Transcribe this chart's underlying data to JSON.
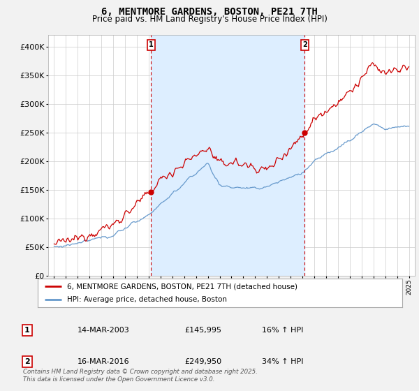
{
  "title": "6, MENTMORE GARDENS, BOSTON, PE21 7TH",
  "subtitle": "Price paid vs. HM Land Registry's House Price Index (HPI)",
  "red_label": "6, MENTMORE GARDENS, BOSTON, PE21 7TH (detached house)",
  "blue_label": "HPI: Average price, detached house, Boston",
  "annotation1": {
    "label": "1",
    "date": "14-MAR-2003",
    "price": "£145,995",
    "hpi": "16% ↑ HPI",
    "year": 2003.2,
    "value": 145995
  },
  "annotation2": {
    "label": "2",
    "date": "16-MAR-2016",
    "price": "£249,950",
    "hpi": "34% ↑ HPI",
    "year": 2016.2,
    "value": 249950
  },
  "footer": "Contains HM Land Registry data © Crown copyright and database right 2025.\nThis data is licensed under the Open Government Licence v3.0.",
  "background_color": "#f2f2f2",
  "plot_background": "#ffffff",
  "shade_color": "#ddeeff",
  "red_color": "#cc0000",
  "blue_color": "#6699cc",
  "grid_color": "#cccccc",
  "annotation_line_color": "#cc0000",
  "ylim": [
    0,
    420000
  ],
  "yticks": [
    0,
    50000,
    100000,
    150000,
    200000,
    250000,
    300000,
    350000,
    400000
  ],
  "xstart": 1995,
  "xend": 2025
}
